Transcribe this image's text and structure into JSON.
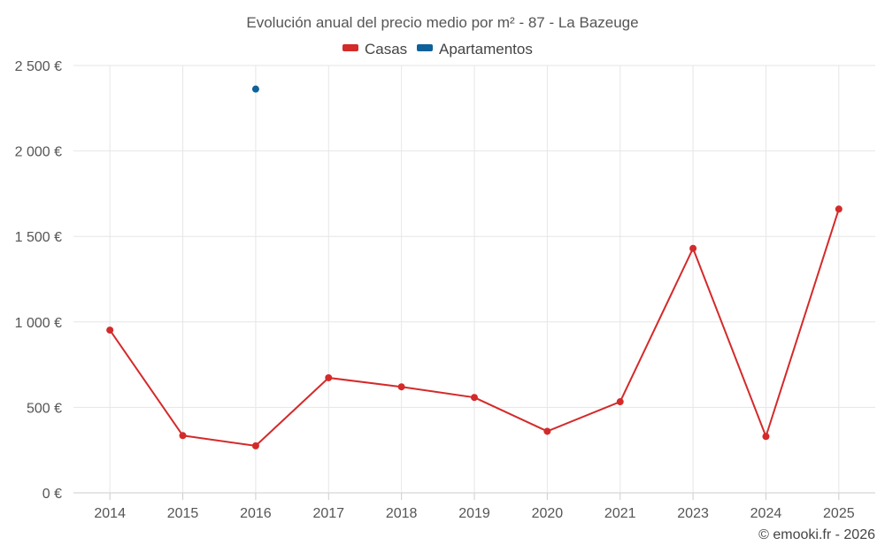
{
  "chart_data": {
    "type": "line",
    "title": "Evolución anual del precio medio por m² - 87 - La Bazeuge",
    "categories": [
      "2014",
      "2015",
      "2016",
      "2017",
      "2018",
      "2019",
      "2020",
      "2021",
      "2023",
      "2024",
      "2025"
    ],
    "series": [
      {
        "name": "Casas",
        "color": "#d42a2a",
        "values": [
          952,
          335,
          275,
          673,
          620,
          558,
          360,
          533,
          1430,
          330,
          1660
        ]
      },
      {
        "name": "Apartamentos",
        "color": "#0f6199",
        "values": [
          null,
          null,
          2362,
          null,
          null,
          null,
          null,
          null,
          null,
          null,
          null
        ]
      }
    ],
    "y_ticks": [
      0,
      500,
      1000,
      1500,
      2000,
      2500
    ],
    "y_tick_labels": [
      "0 €",
      "500 €",
      "1 000 €",
      "1 500 €",
      "2 000 €",
      "2 500 €"
    ],
    "ylim": [
      0,
      2500
    ],
    "xlabel": "",
    "ylabel": "",
    "grid": true,
    "legend_position": "top-center"
  },
  "credit": "© emooki.fr - 2026"
}
